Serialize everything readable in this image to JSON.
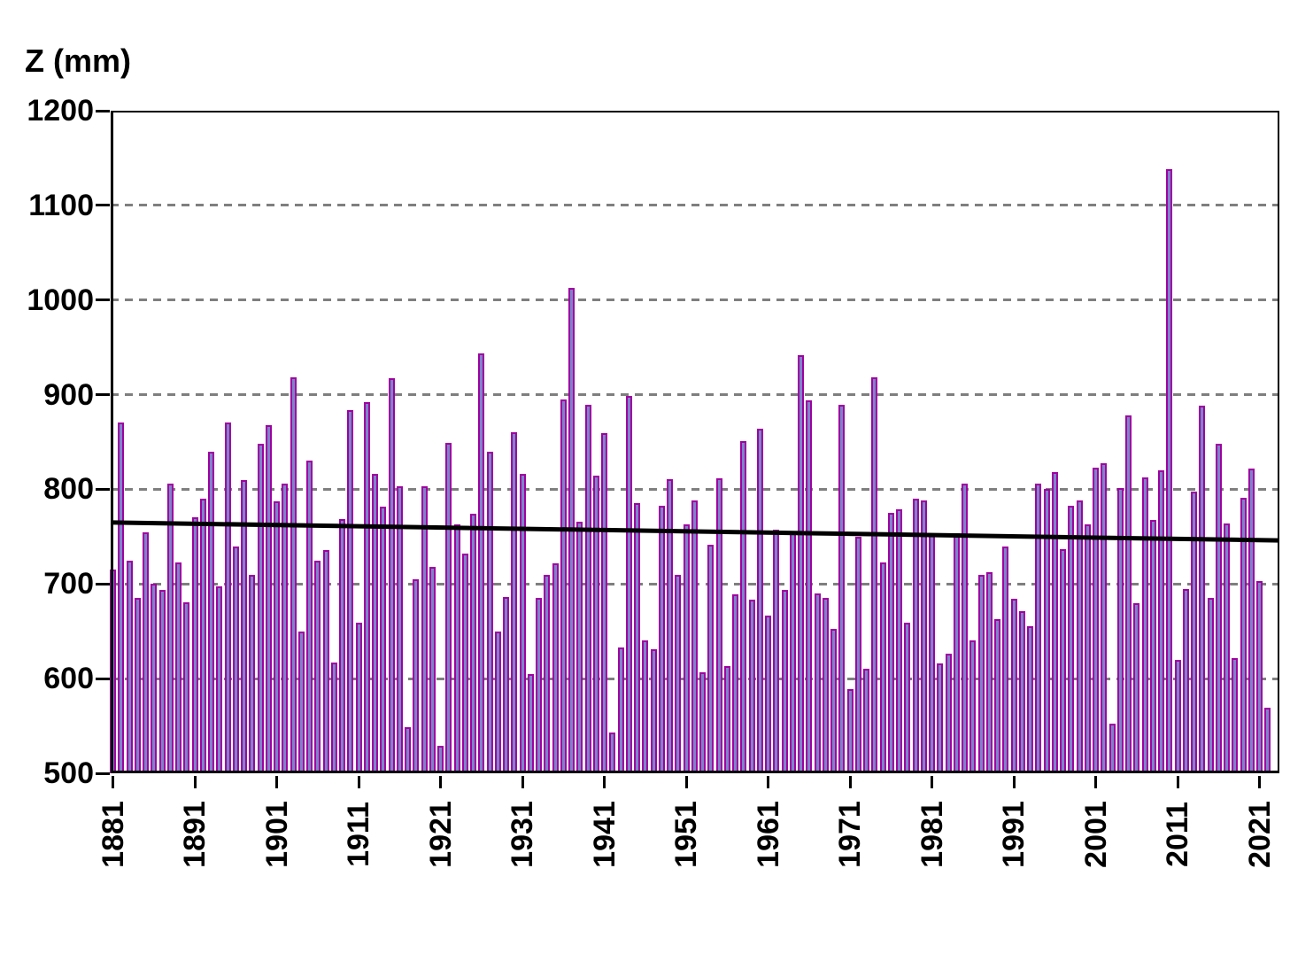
{
  "title": "Z (mm)",
  "colors": {
    "bar_fill": "#7B86C8",
    "bar_border": "#A000A0",
    "trend_line": "#000000",
    "gridline": "#7F7F7F",
    "axis": "#000000",
    "background": "#FFFFFF"
  },
  "chart_data": {
    "type": "bar",
    "title": "Z (mm)",
    "xlabel": "",
    "ylabel": "Z (mm)",
    "ylim": [
      500,
      1200
    ],
    "ytick_step": 100,
    "ytick_labels": [
      "500",
      "600",
      "700",
      "800",
      "900",
      "1000",
      "1100",
      "1200"
    ],
    "gridline_values": [
      600,
      700,
      800,
      900,
      1000,
      1100
    ],
    "grid": "dashed horizontal",
    "legend": "none",
    "xtick_labels": [
      "1881",
      "1891",
      "1901",
      "1911",
      "1921",
      "1931",
      "1941",
      "1951",
      "1961",
      "1971",
      "1981",
      "1991",
      "2001",
      "2011",
      "2021"
    ],
    "years": [
      1881,
      1882,
      1883,
      1884,
      1885,
      1886,
      1887,
      1888,
      1889,
      1890,
      1891,
      1892,
      1893,
      1894,
      1895,
      1896,
      1897,
      1898,
      1899,
      1900,
      1901,
      1902,
      1903,
      1904,
      1905,
      1906,
      1907,
      1908,
      1909,
      1910,
      1911,
      1912,
      1913,
      1914,
      1915,
      1916,
      1917,
      1918,
      1919,
      1920,
      1921,
      1922,
      1923,
      1924,
      1925,
      1926,
      1927,
      1928,
      1929,
      1930,
      1931,
      1932,
      1933,
      1934,
      1935,
      1936,
      1937,
      1938,
      1939,
      1940,
      1941,
      1942,
      1943,
      1944,
      1945,
      1946,
      1947,
      1948,
      1949,
      1950,
      1951,
      1952,
      1953,
      1954,
      1955,
      1956,
      1957,
      1958,
      1959,
      1960,
      1961,
      1962,
      1963,
      1964,
      1965,
      1966,
      1967,
      1968,
      1969,
      1970,
      1971,
      1972,
      1973,
      1974,
      1975,
      1976,
      1977,
      1978,
      1979,
      1980,
      1981,
      1982,
      1983,
      1984,
      1985,
      1986,
      1987,
      1988,
      1989,
      1990,
      1991,
      1992,
      1993,
      1994,
      1995,
      1996,
      1997,
      1998,
      1999,
      2000,
      2001,
      2002,
      2003,
      2004,
      2005,
      2006,
      2007,
      2008,
      2009,
      2010,
      2011,
      2012,
      2013,
      2014,
      2015,
      2016,
      2017,
      2018,
      2019,
      2020,
      2021,
      2022
    ],
    "values": [
      715,
      871,
      725,
      685,
      755,
      700,
      694,
      806,
      723,
      681,
      770,
      790,
      840,
      697,
      871,
      740,
      810,
      710,
      848,
      868,
      787,
      806,
      918,
      650,
      830,
      725,
      736,
      617,
      769,
      884,
      659,
      892,
      816,
      782,
      917,
      803,
      549,
      705,
      803,
      718,
      529,
      849,
      763,
      732,
      774,
      944,
      840,
      650,
      686,
      860,
      816,
      605,
      685,
      710,
      722,
      895,
      1013,
      766,
      889,
      814,
      859,
      543,
      633,
      899,
      785,
      640,
      631,
      783,
      811,
      710,
      763,
      788,
      607,
      741,
      812,
      613,
      689,
      851,
      683,
      864,
      667,
      757,
      694,
      755,
      942,
      894,
      690,
      685,
      653,
      889,
      589,
      750,
      610,
      918,
      723,
      775,
      779,
      659,
      790,
      788,
      752,
      616,
      626,
      754,
      806,
      640,
      710,
      712,
      663,
      740,
      684,
      671,
      655,
      806,
      800,
      818,
      737,
      783,
      788,
      763,
      823,
      828,
      552,
      801,
      878,
      680,
      813,
      768,
      820,
      1138,
      620,
      695,
      798,
      888,
      685,
      848,
      764,
      622,
      791,
      822,
      703,
      569
    ],
    "trend_line": {
      "description": "linear trend across full plot width",
      "value_at_left_edge": 765,
      "value_at_right_edge": 746
    }
  }
}
